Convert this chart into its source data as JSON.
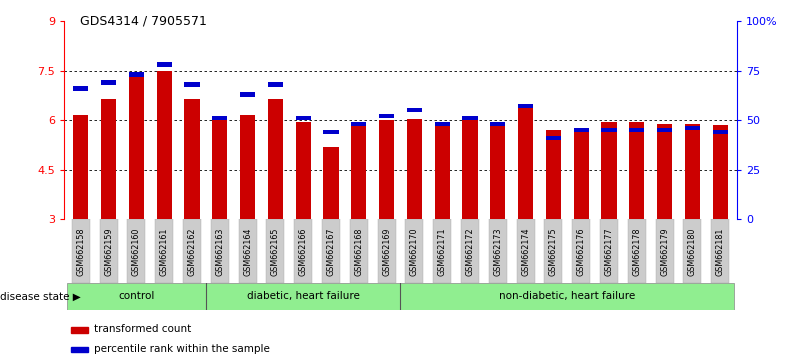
{
  "title": "GDS4314 / 7905571",
  "samples": [
    "GSM662158",
    "GSM662159",
    "GSM662160",
    "GSM662161",
    "GSM662162",
    "GSM662163",
    "GSM662164",
    "GSM662165",
    "GSM662166",
    "GSM662167",
    "GSM662168",
    "GSM662169",
    "GSM662170",
    "GSM662171",
    "GSM662172",
    "GSM662173",
    "GSM662174",
    "GSM662175",
    "GSM662176",
    "GSM662177",
    "GSM662178",
    "GSM662179",
    "GSM662180",
    "GSM662181"
  ],
  "transformed_count": [
    6.15,
    6.65,
    7.35,
    7.5,
    6.65,
    6.0,
    6.15,
    6.65,
    5.95,
    5.2,
    5.95,
    6.0,
    6.05,
    5.95,
    6.0,
    5.95,
    6.5,
    5.7,
    5.7,
    5.95,
    5.95,
    5.9,
    5.9,
    5.85
  ],
  "percentile_rank": [
    65,
    68,
    72,
    77,
    67,
    50,
    62,
    67,
    50,
    43,
    47,
    51,
    54,
    47,
    50,
    47,
    56,
    40,
    44,
    44,
    44,
    44,
    45,
    43
  ],
  "groups": [
    {
      "label": "control",
      "start": 0,
      "end": 5,
      "color": "#90EE90"
    },
    {
      "label": "diabetic, heart failure",
      "start": 5,
      "end": 12,
      "color": "#90EE90"
    },
    {
      "label": "non-diabetic, heart failure",
      "start": 12,
      "end": 24,
      "color": "#90EE90"
    }
  ],
  "group_dividers": [
    5,
    12
  ],
  "ylim_left": [
    3,
    9
  ],
  "ylim_right": [
    0,
    100
  ],
  "yticks_left": [
    3,
    4.5,
    6,
    7.5,
    9
  ],
  "yticks_right": [
    0,
    25,
    50,
    75,
    100
  ],
  "ytick_labels_right": [
    "0",
    "25",
    "50",
    "75",
    "100%"
  ],
  "bar_color": "#cc0000",
  "percentile_color": "#0000cc",
  "bar_width": 0.55,
  "tick_area_color": "#cccccc",
  "legend_red": "transformed count",
  "legend_blue": "percentile rank within the sample",
  "grid_lines": [
    4.5,
    6.0,
    7.5
  ],
  "disease_state_label": "disease state"
}
